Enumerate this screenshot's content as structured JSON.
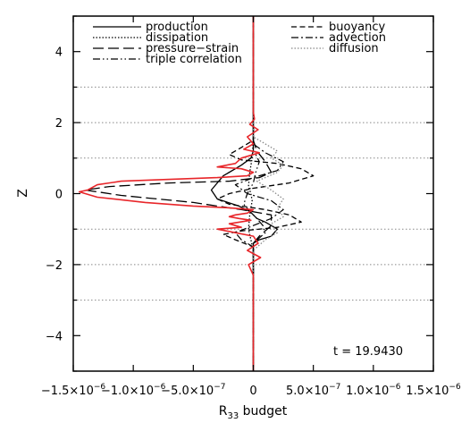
{
  "chart_data": {
    "type": "line",
    "xlabel": "R",
    "xlabel_subscript": "33",
    "xlabel_suffix": " budget",
    "ylabel": "Z",
    "xlim": [
      -1.5e-06,
      1.5e-06
    ],
    "ylim": [
      -5,
      5
    ],
    "x_ticks": [
      {
        "value": -1.5e-06,
        "base": "−1.5×10",
        "exp": "−6"
      },
      {
        "value": -1e-06,
        "base": "−1.0×10",
        "exp": "−6"
      },
      {
        "value": -5e-07,
        "base": "−5.0×10",
        "exp": "−7"
      },
      {
        "value": 0,
        "base": "0",
        "exp": ""
      },
      {
        "value": 5e-07,
        "base": "5.0×10",
        "exp": "−7"
      },
      {
        "value": 1e-06,
        "base": "1.0×10",
        "exp": "−6"
      },
      {
        "value": 1.5e-06,
        "base": "1.5×10",
        "exp": "−6"
      }
    ],
    "y_ticks": [
      {
        "value": -4,
        "label": "−4"
      },
      {
        "value": -2,
        "label": "−2"
      },
      {
        "value": 0,
        "label": "0"
      },
      {
        "value": 2,
        "label": "2"
      },
      {
        "value": 4,
        "label": "4"
      }
    ],
    "hgrid_dotted": [
      -3,
      -2,
      -1,
      1,
      2,
      3
    ],
    "annotation": "t = 19.9430",
    "legend_left": [
      "production",
      "dissipation",
      "pressure−strain",
      "triple correlation"
    ],
    "legend_right": [
      "buoyancy",
      "advection",
      "diffusion"
    ],
    "colors": {
      "axes": "#000000",
      "red_series": "#e8262a",
      "grid": "#888888"
    },
    "series": [
      {
        "name": "production",
        "style": "solid",
        "color": "#000000",
        "x": [
          0,
          0,
          0,
          -2e-08,
          -1e-07,
          -2.5e-07,
          -3.5e-07,
          -3e-07,
          -1.2e-07,
          -3e-08,
          0,
          3e-08,
          1e-07,
          2e-07,
          1.5e-07,
          5e-08,
          0,
          0,
          0
        ],
        "z": [
          5,
          2,
          1.2,
          1.0,
          0.8,
          0.5,
          0.1,
          -0.15,
          -0.35,
          -0.5,
          -0.6,
          -0.7,
          -0.8,
          -1.0,
          -1.2,
          -1.3,
          -1.4,
          -2,
          -5
        ]
      },
      {
        "name": "dissipation",
        "style": "dotted",
        "color": "#000000",
        "x": [
          0,
          0,
          -1e-08,
          -3e-08,
          -4e-08,
          -2e-08,
          -1e-08,
          -3e-08,
          -4e-08,
          -2e-08,
          0,
          0
        ],
        "z": [
          5,
          1.5,
          1.0,
          0.6,
          0.2,
          0.0,
          -0.2,
          -0.6,
          -1.0,
          -1.3,
          -1.6,
          -5
        ]
      },
      {
        "name": "pressure−strain",
        "style": "longdash",
        "color": "#000000",
        "x": [
          0,
          0,
          0,
          3e-08,
          1e-07,
          1.5e-07,
          5e-08,
          -2e-07,
          -7e-07,
          -1.2e-06,
          -1.4e-06,
          -1.1e-06,
          -5e-07,
          -1e-07,
          1.5e-07,
          1.5e-07,
          5e-08,
          0,
          0,
          0
        ],
        "z": [
          5,
          2,
          1.5,
          1.2,
          0.9,
          0.6,
          0.45,
          0.35,
          0.3,
          0.2,
          0.1,
          -0.05,
          -0.25,
          -0.45,
          -0.6,
          -0.9,
          -1.2,
          -1.4,
          -2,
          -5
        ]
      },
      {
        "name": "triple correlation",
        "style": "dashdotdot",
        "color": "#000000",
        "x": [
          0,
          0,
          0,
          2e-08,
          5e-08,
          2e-08,
          0,
          -5e-08,
          -8e-08,
          -3e-08,
          3e-08,
          8e-08,
          1e-07,
          5e-08,
          0,
          0,
          0
        ],
        "z": [
          5,
          2,
          1.3,
          1.1,
          0.9,
          0.6,
          0.3,
          0.0,
          -0.3,
          -0.5,
          -0.7,
          -0.9,
          -1.1,
          -1.25,
          -1.4,
          -2,
          -5
        ]
      },
      {
        "name": "buoyancy",
        "style": "dashed",
        "color": "#000000",
        "x": [
          0,
          0,
          0,
          -1e-07,
          -2e-07,
          -1e-07,
          2e-07,
          4e-07,
          5e-07,
          3e-07,
          0,
          -2e-07,
          -3e-07,
          -2e-07,
          1e-07,
          3e-07,
          4e-07,
          2e-07,
          -1e-07,
          -2.5e-07,
          -1.5e-07,
          0,
          0,
          0
        ],
        "z": [
          5,
          2,
          1.5,
          1.3,
          1.1,
          0.95,
          0.85,
          0.7,
          0.5,
          0.3,
          0.15,
          0.0,
          -0.15,
          -0.3,
          -0.45,
          -0.6,
          -0.8,
          -0.95,
          -1.05,
          -1.15,
          -1.3,
          -1.5,
          -2,
          -5
        ]
      },
      {
        "name": "advection",
        "style": "dashdot",
        "color": "#000000",
        "x": [
          0,
          0,
          0,
          1e-07,
          2.5e-07,
          2e-07,
          0,
          -1.5e-07,
          -5e-08,
          1.5e-07,
          2.5e-07,
          1.5e-07,
          0,
          -1.5e-07,
          -1e-07,
          0,
          0,
          0
        ],
        "z": [
          5,
          2,
          1.4,
          1.15,
          0.9,
          0.65,
          0.45,
          0.25,
          0.0,
          -0.2,
          -0.45,
          -0.7,
          -0.9,
          -1.1,
          -1.3,
          -1.5,
          -2,
          -5
        ]
      },
      {
        "name": "diffusion",
        "style": "dotted-grey",
        "color": "#888888",
        "x": [
          0,
          0,
          0,
          1e-07,
          2e-07,
          1.5e-07,
          2.5e-07,
          2e-07,
          3e-08,
          1.5e-07,
          2.5e-07,
          2e-07,
          2.5e-07,
          1.5e-07,
          2e-07,
          1e-07,
          0,
          0,
          0
        ],
        "z": [
          5,
          2,
          1.6,
          1.4,
          1.2,
          1.0,
          0.8,
          0.6,
          0.35,
          0.1,
          -0.15,
          -0.4,
          -0.65,
          -0.85,
          -1.1,
          -1.3,
          -1.6,
          -2,
          -5
        ]
      },
      {
        "name": "",
        "style": "red-total",
        "color": "#e8262a",
        "x": [
          0,
          0,
          1e-08,
          -3e-08,
          4e-08,
          -5e-08,
          0,
          -8e-08,
          5e-08,
          -1e-07,
          -1.5e-07,
          -3e-07,
          -1e-07,
          0,
          -5e-08,
          -3e-07,
          -7e-07,
          -1.1e-06,
          -1.3e-06,
          -1.38e-06,
          -1.45e-06,
          -1.3e-06,
          -9e-07,
          -5e-07,
          -2e-07,
          0,
          -5e-08,
          -1.5e-07,
          -2e-07,
          -1.2e-07,
          -2e-08,
          -2e-07,
          -1e-07,
          -3e-07,
          -1.5e-07,
          0,
          4e-08,
          -5e-08,
          6e-08,
          -4e-08,
          0,
          0
        ],
        "z": [
          5,
          2.3,
          2.1,
          1.95,
          1.8,
          1.6,
          1.4,
          1.25,
          1.15,
          1.0,
          0.85,
          0.75,
          0.7,
          0.6,
          0.5,
          0.45,
          0.4,
          0.35,
          0.25,
          0.1,
          0.05,
          -0.1,
          -0.25,
          -0.35,
          -0.4,
          -0.45,
          -0.55,
          -0.6,
          -0.65,
          -0.7,
          -0.75,
          -0.85,
          -0.95,
          -1.0,
          -1.1,
          -1.2,
          -1.4,
          -1.6,
          -1.8,
          -2.0,
          -2.3,
          -5
        ]
      }
    ]
  }
}
